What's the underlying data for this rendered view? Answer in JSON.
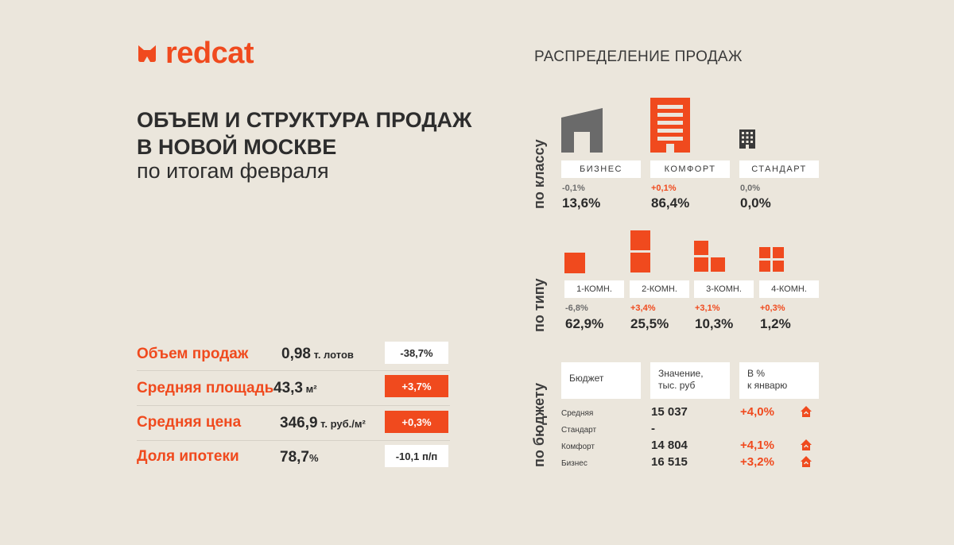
{
  "brand": {
    "name": "redcat",
    "color": "#f04a1e",
    "icon": "cat-head-icon"
  },
  "header": {
    "title_line1": "ОБЪЕМ И СТРУКТУРА ПРОДАЖ",
    "title_line2": "В НОВОЙ МОСКВЕ",
    "subtitle": "по итогам февраля"
  },
  "stats": [
    {
      "label": "Объем продаж",
      "value": "0,98",
      "unit": " т. лотов",
      "change": "-38,7%",
      "badge": "white"
    },
    {
      "label": "Средняя площадь",
      "value": "43,3",
      "unit": " м²",
      "change": "+3,7%",
      "badge": "red"
    },
    {
      "label": "Средняя цена",
      "value": "346,9",
      "unit": " т. руб./м²",
      "change": "+0,3%",
      "badge": "red"
    },
    {
      "label": "Доля ипотеки",
      "value": "78,7",
      "unit": "%",
      "change": "-10,1 п/п",
      "badge": "white"
    }
  ],
  "distribution": {
    "title": "РАСПРЕДЕЛЕНИЕ ПРОДАЖ",
    "by_class": {
      "label": "по классу",
      "items": [
        {
          "name": "БИЗНЕС",
          "delta": "-0,1%",
          "value": "13,6%",
          "icon": "business-building-icon"
        },
        {
          "name": "КОМФОРТ",
          "delta": "+0,1%",
          "value": "86,4%",
          "icon": "comfort-building-icon"
        },
        {
          "name": "СТАНДАРТ",
          "delta": "0,0%",
          "value": "0,0%",
          "icon": "standard-building-icon"
        }
      ]
    },
    "by_type": {
      "label": "по типу",
      "items": [
        {
          "name": "1-КОМН.",
          "delta": "-6,8%",
          "value": "62,9%"
        },
        {
          "name": "2-КОМН.",
          "delta": "+3,4%",
          "value": "25,5%"
        },
        {
          "name": "3-КОМН.",
          "delta": "+3,1%",
          "value": "10,3%"
        },
        {
          "name": "4-КОМН.",
          "delta": "+0,3%",
          "value": "1,2%"
        }
      ]
    },
    "by_budget": {
      "label": "по бюджету",
      "headers": [
        "Бюджет",
        "Значение,\nтыс. руб",
        "В %\nк январю"
      ],
      "rows": [
        {
          "name": "Средняя",
          "value": "15 037",
          "change": "+4,0%",
          "icon": "house-up-icon"
        },
        {
          "name": "Стандарт",
          "value": "-",
          "change": "",
          "icon": ""
        },
        {
          "name": "Комфорт",
          "value": "14 804",
          "change": "+4,1%",
          "icon": "house-up-icon"
        },
        {
          "name": "Бизнес",
          "value": "16 515",
          "change": "+3,2%",
          "icon": "house-up-icon"
        }
      ]
    }
  }
}
